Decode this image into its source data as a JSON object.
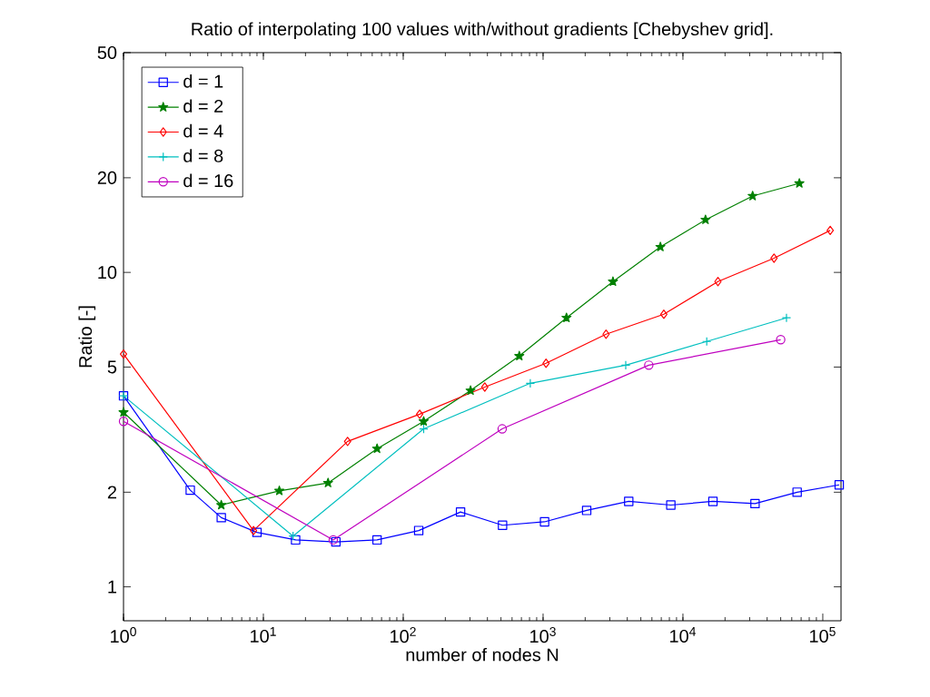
{
  "chart_data": {
    "type": "line",
    "title": "Ratio of interpolating 100 values with/without gradients [Chebyshev grid].",
    "xlabel": "number of nodes N",
    "ylabel": "Ratio [-]",
    "log": "xy",
    "legend": "top left",
    "grid": false,
    "xlim": [
      1,
      135000
    ],
    "ylim": [
      0.78,
      50
    ],
    "xticks": [
      {
        "value": 1,
        "label": "10$^{0}$"
      },
      {
        "value": 10,
        "label": "10$^{1}$"
      },
      {
        "value": 100,
        "label": "10$^{2}$"
      },
      {
        "value": 1000,
        "label": "10$^{3}$"
      },
      {
        "value": 10000,
        "label": "10$^{4}$"
      },
      {
        "value": 100000,
        "label": "10$^{5}$"
      }
    ],
    "yticks": [
      1,
      2,
      5,
      10,
      20,
      50
    ],
    "series": [
      {
        "name": "d = 1",
        "color": "#0000ff",
        "marker": "square",
        "x": [
          1,
          3,
          5,
          9,
          17,
          33,
          65,
          129,
          257,
          513,
          1025,
          2049,
          4097,
          8193,
          16385,
          32769,
          65537,
          131073
        ],
        "values": [
          4.05,
          2.03,
          1.66,
          1.49,
          1.41,
          1.39,
          1.41,
          1.51,
          1.73,
          1.57,
          1.61,
          1.75,
          1.87,
          1.82,
          1.87,
          1.84,
          2.0,
          2.11
        ]
      },
      {
        "name": "d = 2",
        "color": "#008000",
        "marker": "star",
        "x": [
          1,
          5,
          13,
          29,
          65,
          140,
          303,
          676,
          1470,
          3160,
          6900,
          14500,
          31500,
          68000
        ],
        "values": [
          3.59,
          1.82,
          2.02,
          2.14,
          2.75,
          3.36,
          4.21,
          5.42,
          7.17,
          9.35,
          12.05,
          14.7,
          17.5,
          19.2
        ]
      },
      {
        "name": "d = 4",
        "color": "#ff0000",
        "marker": "diamond",
        "x": [
          1,
          8.5,
          40,
          131,
          383,
          1050,
          2820,
          7300,
          17800,
          44800,
          113000
        ],
        "values": [
          5.5,
          1.51,
          2.9,
          3.54,
          4.32,
          5.14,
          6.36,
          7.36,
          9.35,
          11.1,
          13.6
        ]
      },
      {
        "name": "d = 8",
        "color": "#00bfbf",
        "marker": "cross",
        "x": [
          1,
          16.3,
          140,
          810,
          3900,
          14800,
          55000
        ],
        "values": [
          4.05,
          1.45,
          3.18,
          4.44,
          5.07,
          6.03,
          7.17
        ]
      },
      {
        "name": "d = 16",
        "color": "#bf00bf",
        "marker": "circle",
        "x": [
          1,
          31.6,
          510,
          5700,
          50000
        ],
        "values": [
          3.36,
          1.41,
          3.18,
          5.07,
          6.11
        ]
      }
    ]
  }
}
